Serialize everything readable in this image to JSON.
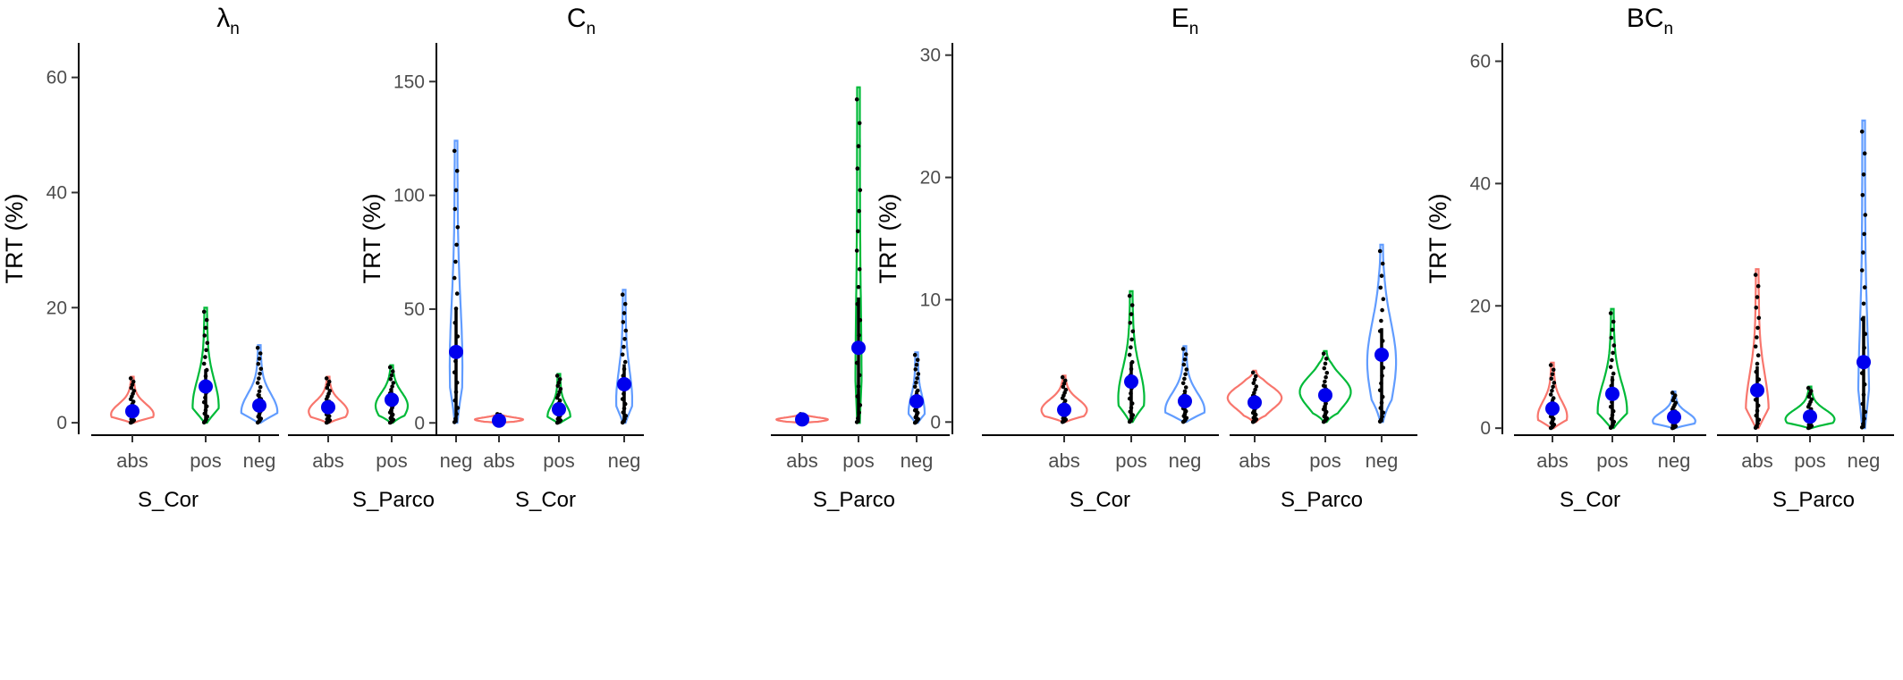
{
  "chart_data": [
    {
      "type": "violin",
      "title": "λ",
      "title_sub": "n",
      "ylabel": "TRT (%)",
      "ylim": [
        -2,
        66
      ],
      "yticks": [
        0,
        20,
        40,
        60
      ],
      "facets": [
        "S_Cor",
        "S_Parco"
      ],
      "categories": [
        "abs",
        "pos",
        "neg"
      ],
      "colors": {
        "abs": "#F8766D",
        "pos": "#00BA38",
        "neg": "#619CFF"
      },
      "groups": [
        {
          "facet": "S_Cor",
          "category": "abs",
          "mean": 2.0,
          "min": 0,
          "max": 8.0,
          "width": 0.6,
          "peak": 1.5
        },
        {
          "facet": "S_Cor",
          "category": "pos",
          "mean": 6.3,
          "min": 0,
          "max": 20.0,
          "width": 0.35,
          "peak": 3.0
        },
        {
          "facet": "S_Cor",
          "category": "neg",
          "mean": 3.0,
          "min": 0,
          "max": 13.5,
          "width": 0.5,
          "peak": 2.0
        },
        {
          "facet": "S_Parco",
          "category": "abs",
          "mean": 2.7,
          "min": 0,
          "max": 8.0,
          "width": 0.55,
          "peak": 2.0
        },
        {
          "facet": "S_Parco",
          "category": "pos",
          "mean": 4.0,
          "min": 0,
          "max": 10.0,
          "width": 0.45,
          "peak": 3.0
        },
        {
          "facet": "S_Parco",
          "category": "neg",
          "mean": 12.3,
          "min": 0,
          "max": 49.0,
          "width": 0.15,
          "peak": 10.0
        }
      ]
    },
    {
      "type": "violin",
      "title": "C",
      "title_sub": "n",
      "ylabel": "TRT (%)",
      "ylim": [
        -5,
        167
      ],
      "yticks": [
        0,
        50,
        100,
        150
      ],
      "facets": [
        "S_Cor",
        "S_Parco"
      ],
      "categories": [
        "abs",
        "pos",
        "neg"
      ],
      "colors": {
        "abs": "#F8766D",
        "pos": "#00BA38",
        "neg": "#619CFF"
      },
      "groups": [
        {
          "facet": "S_Cor",
          "category": "abs",
          "mean": 1.0,
          "min": 0,
          "max": 4.0,
          "width": 0.7,
          "peak": 1.5
        },
        {
          "facet": "S_Cor",
          "category": "pos",
          "mean": 6.0,
          "min": 0,
          "max": 21.5,
          "width": 0.3,
          "peak": 3.0
        },
        {
          "facet": "S_Cor",
          "category": "neg",
          "mean": 17.0,
          "min": 0,
          "max": 58.5,
          "width": 0.2,
          "peak": 10.0
        },
        {
          "facet": "S_Parco",
          "category": "abs",
          "mean": 1.5,
          "min": 0,
          "max": 4.0,
          "width": 0.75,
          "peak": 1.5
        },
        {
          "facet": "S_Parco",
          "category": "pos",
          "mean": 33.0,
          "min": 0,
          "max": 147.5,
          "width": 0.05,
          "peak": 20.0
        },
        {
          "facet": "S_Parco",
          "category": "neg",
          "mean": 9.5,
          "min": 0,
          "max": 31.0,
          "width": 0.2,
          "peak": 5.0
        }
      ]
    },
    {
      "type": "violin",
      "title": "E",
      "title_sub": "n",
      "ylabel": "TRT (%)",
      "ylim": [
        -1,
        31
      ],
      "yticks": [
        0,
        10,
        20,
        30
      ],
      "facets": [
        "S_Cor",
        "S_Parco"
      ],
      "categories": [
        "abs",
        "pos",
        "neg"
      ],
      "colors": {
        "abs": "#F8766D",
        "pos": "#00BA38",
        "neg": "#619CFF"
      },
      "groups": [
        {
          "facet": "S_Cor",
          "category": "abs",
          "mean": 1.0,
          "min": 0,
          "max": 3.8,
          "width": 0.65,
          "peak": 1.0
        },
        {
          "facet": "S_Cor",
          "category": "pos",
          "mean": 3.3,
          "min": 0,
          "max": 10.7,
          "width": 0.35,
          "peak": 2.0
        },
        {
          "facet": "S_Cor",
          "category": "neg",
          "mean": 1.7,
          "min": 0,
          "max": 6.2,
          "width": 0.55,
          "peak": 1.0
        },
        {
          "facet": "S_Parco",
          "category": "abs",
          "mean": 1.6,
          "min": 0,
          "max": 4.2,
          "width": 0.8,
          "peak": 2.0
        },
        {
          "facet": "S_Parco",
          "category": "pos",
          "mean": 2.2,
          "min": 0,
          "max": 5.8,
          "width": 0.75,
          "peak": 2.5
        },
        {
          "facet": "S_Parco",
          "category": "neg",
          "mean": 5.5,
          "min": 0,
          "max": 14.5,
          "width": 0.4,
          "peak": 5.0
        }
      ]
    },
    {
      "type": "violin",
      "title": "BC",
      "title_sub": "n",
      "ylabel": "TRT (%)",
      "ylim": [
        -1,
        63
      ],
      "yticks": [
        0,
        20,
        40,
        60
      ],
      "facets": [
        "S_Cor",
        "S_Parco"
      ],
      "categories": [
        "abs",
        "pos",
        "neg"
      ],
      "colors": {
        "abs": "#F8766D",
        "pos": "#00BA38",
        "neg": "#619CFF"
      },
      "groups": [
        {
          "facet": "S_Cor",
          "category": "abs",
          "mean": 3.2,
          "min": 0,
          "max": 10.7,
          "width": 0.4,
          "peak": 2.0
        },
        {
          "facet": "S_Cor",
          "category": "pos",
          "mean": 5.6,
          "min": 0,
          "max": 19.5,
          "width": 0.4,
          "peak": 3.0
        },
        {
          "facet": "S_Cor",
          "category": "neg",
          "mean": 1.8,
          "min": 0,
          "max": 6.0,
          "width": 0.6,
          "peak": 1.2
        },
        {
          "facet": "S_Parco",
          "category": "abs",
          "mean": 6.2,
          "min": 0,
          "max": 26.0,
          "width": 0.3,
          "peak": 3.0
        },
        {
          "facet": "S_Parco",
          "category": "pos",
          "mean": 1.9,
          "min": 0,
          "max": 6.8,
          "width": 0.7,
          "peak": 1.5
        },
        {
          "facet": "S_Parco",
          "category": "neg",
          "mean": 10.8,
          "min": 0,
          "max": 50.3,
          "width": 0.12,
          "peak": 5.0
        }
      ]
    }
  ]
}
